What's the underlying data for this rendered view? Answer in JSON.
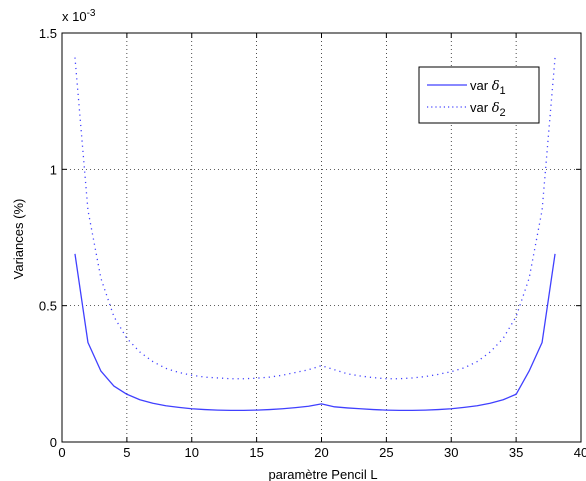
{
  "chart_data": {
    "type": "line",
    "title": "",
    "xlabel": "paramètre Pencil L",
    "ylabel": "Variances (%)",
    "y_multiplier_label": "x 10",
    "y_multiplier_exponent": "-3",
    "xlim": [
      0,
      40
    ],
    "ylim": [
      0,
      1.5
    ],
    "x_ticks": [
      0,
      5,
      10,
      15,
      20,
      25,
      30,
      35,
      40
    ],
    "y_ticks": [
      0,
      0.5,
      1,
      1.5
    ],
    "y_tick_labels": [
      "0",
      "0.5",
      "1",
      "1.5"
    ],
    "grid": true,
    "legend_position": "top-right",
    "x": [
      1,
      2,
      3,
      4,
      5,
      6,
      7,
      8,
      9,
      10,
      11,
      12,
      13,
      14,
      15,
      16,
      17,
      18,
      19,
      20,
      21,
      22,
      23,
      24,
      25,
      26,
      27,
      28,
      29,
      30,
      31,
      32,
      33,
      34,
      35,
      36,
      37,
      38
    ],
    "series": [
      {
        "name": "var",
        "symbol": "δ",
        "subscript": "1",
        "style": "solid",
        "color": "#4040ff",
        "values": [
          0.69,
          0.365,
          0.26,
          0.205,
          0.175,
          0.155,
          0.142,
          0.133,
          0.127,
          0.122,
          0.119,
          0.117,
          0.116,
          0.116,
          0.117,
          0.119,
          0.122,
          0.126,
          0.131,
          0.14,
          0.129,
          0.125,
          0.122,
          0.119,
          0.117,
          0.116,
          0.116,
          0.117,
          0.119,
          0.122,
          0.127,
          0.133,
          0.142,
          0.155,
          0.175,
          0.26,
          0.365,
          0.69
        ]
      },
      {
        "name": "var",
        "symbol": "δ",
        "subscript": "2",
        "style": "dotted",
        "color": "#4040ff",
        "values": [
          1.41,
          0.85,
          0.6,
          0.46,
          0.38,
          0.33,
          0.295,
          0.27,
          0.255,
          0.245,
          0.238,
          0.235,
          0.232,
          0.232,
          0.234,
          0.238,
          0.245,
          0.255,
          0.265,
          0.28,
          0.265,
          0.25,
          0.242,
          0.236,
          0.232,
          0.232,
          0.235,
          0.24,
          0.248,
          0.258,
          0.272,
          0.295,
          0.33,
          0.38,
          0.46,
          0.6,
          0.85,
          1.41
        ]
      }
    ]
  }
}
